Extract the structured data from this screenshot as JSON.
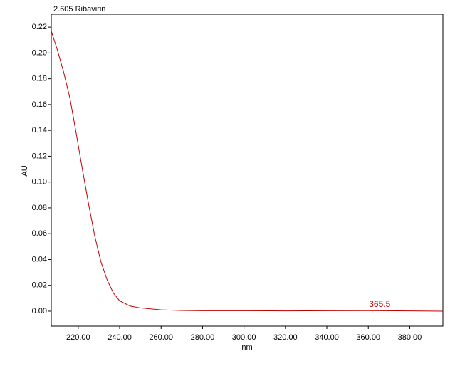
{
  "chart_data": {
    "type": "line",
    "title": "2.605 Ribavirin",
    "x_label": "nm",
    "y_label": "AU",
    "x": [
      207,
      210,
      213,
      216,
      219,
      222,
      225,
      228,
      231,
      234,
      237,
      240,
      245,
      250,
      260,
      270,
      280,
      300,
      320,
      340,
      360,
      380,
      396
    ],
    "series": [
      {
        "name": "2.605 Ribavirin",
        "color": "#c00000",
        "values": [
          0.217,
          0.202,
          0.185,
          0.165,
          0.138,
          0.11,
          0.083,
          0.058,
          0.038,
          0.024,
          0.014,
          0.008,
          0.004,
          0.0025,
          0.001,
          0.0005,
          0.0003,
          0.0003,
          0.0002,
          0.0003,
          0.0004,
          0.0002,
          0
        ]
      }
    ],
    "annotation": 365.5,
    "xlim": [
      207,
      396
    ],
    "ylim": [
      -0.0116,
      0.23
    ],
    "xticks": [
      {
        "value": 220,
        "label": "220.00"
      },
      {
        "value": 240,
        "label": "240.00"
      },
      {
        "value": 260,
        "label": "260.00"
      },
      {
        "value": 280,
        "label": "280.00"
      },
      {
        "value": 300,
        "label": "300.00"
      },
      {
        "value": 320,
        "label": "320.00"
      },
      {
        "value": 340,
        "label": "340.00"
      },
      {
        "value": 360,
        "label": "360.00"
      },
      {
        "value": 380,
        "label": "380.00"
      }
    ],
    "yticks": [
      {
        "value": 0,
        "label": "0.00"
      },
      {
        "value": 0.02,
        "label": "0.02"
      },
      {
        "value": 0.04,
        "label": "0.04"
      },
      {
        "value": 0.06,
        "label": "0.06"
      },
      {
        "value": 0.08,
        "label": "0.08"
      },
      {
        "value": 0.1,
        "label": "0.10"
      },
      {
        "value": 0.12,
        "label": "0.12"
      },
      {
        "value": 0.14,
        "label": "0.14"
      },
      {
        "value": 0.16,
        "label": "0.16"
      },
      {
        "value": 0.18,
        "label": "0.18"
      },
      {
        "value": 0.2,
        "label": "0.20"
      },
      {
        "value": 0.22,
        "label": "0.22"
      }
    ]
  }
}
